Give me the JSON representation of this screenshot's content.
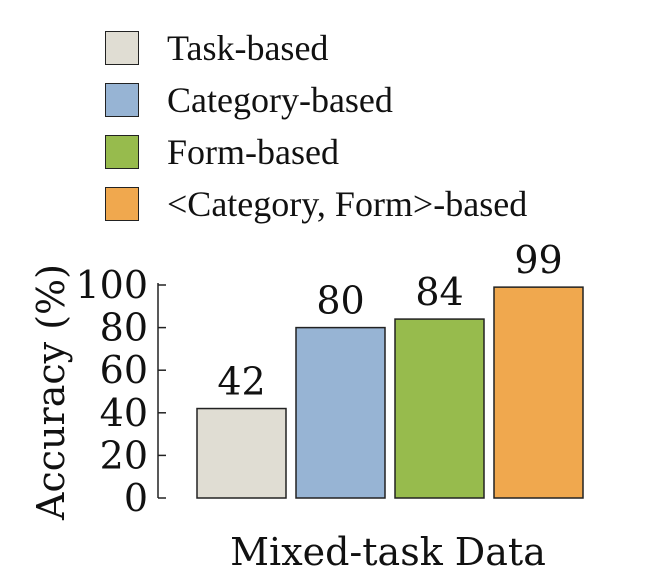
{
  "chart_data": {
    "type": "bar",
    "xlabel": "Mixed-task Data",
    "ylabel": "Accuracy (%)",
    "ylim": [
      0,
      100
    ],
    "yticks": [
      "0",
      "20",
      "40",
      "60",
      "80",
      "100"
    ],
    "legend_position": "top",
    "grid": false,
    "series": [
      {
        "name": "Task-based",
        "values": [
          42
        ],
        "color": "#e0ddd3"
      },
      {
        "name": "Category-based",
        "values": [
          80
        ],
        "color": "#97b4d4"
      },
      {
        "name": "Form-based",
        "values": [
          84
        ],
        "color": "#97bb4d"
      },
      {
        "name": "<Category, Form>-based",
        "values": [
          99
        ],
        "color": "#f0a84e"
      }
    ],
    "data_labels": [
      "42",
      "80",
      "84",
      "99"
    ]
  }
}
